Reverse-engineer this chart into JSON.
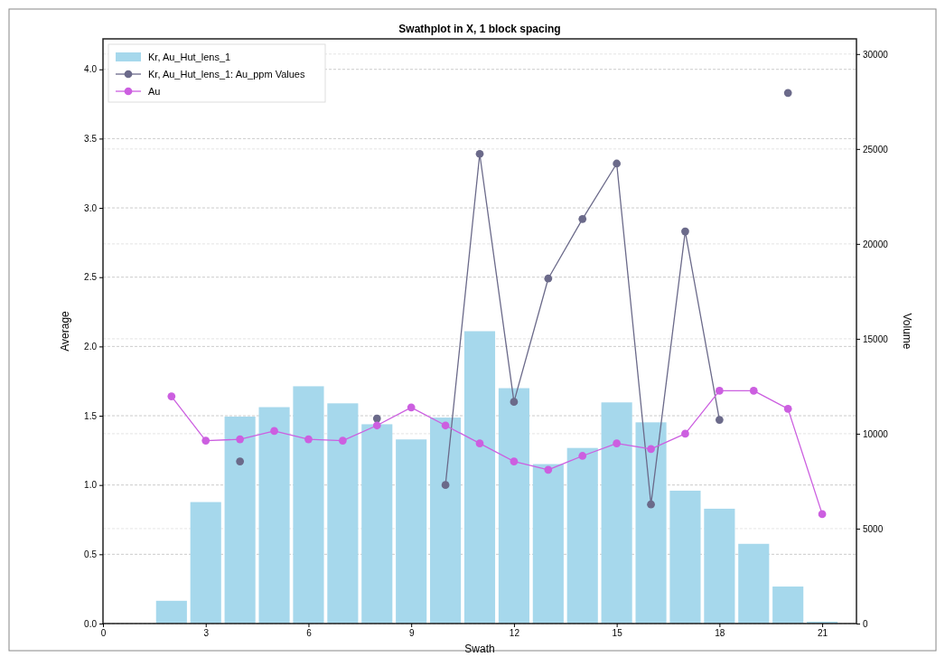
{
  "chart_data": {
    "type": "bar",
    "title": "Swathplot in X, 1 block spacing",
    "xlabel": "Swath",
    "ylabel": "Average",
    "y2label": "Volume",
    "x": [
      2,
      3,
      4,
      5,
      6,
      7,
      8,
      9,
      10,
      11,
      12,
      13,
      14,
      15,
      16,
      17,
      18,
      19,
      20,
      21
    ],
    "xlim": [
      0,
      22
    ],
    "xticks": [
      0,
      3,
      6,
      9,
      12,
      15,
      18,
      21
    ],
    "ylim": [
      0,
      4.22
    ],
    "yticks": [
      {
        "value": 0,
        "label": "0.0"
      },
      0.5,
      {
        "value": 1,
        "label": "1.0"
      },
      1.5,
      {
        "value": 2,
        "label": "2.0"
      },
      2.5,
      {
        "value": 3,
        "label": "3.0"
      },
      3.5,
      {
        "value": 4,
        "label": "4.0"
      }
    ],
    "y2lim": [
      0,
      30800
    ],
    "y2ticks": [
      0,
      5000,
      10000,
      15000,
      20000,
      25000,
      30000
    ],
    "grid": true,
    "legend": "top left",
    "marker": "circle",
    "series": [
      {
        "name": "Kr, Au_Hut_lens_1",
        "axis": "y2",
        "color": "#a6d8ec",
        "values": [
          1200,
          6400,
          10900,
          11400,
          12500,
          11600,
          10500,
          9700,
          10850,
          15400,
          12400,
          8400,
          9250,
          11650,
          10600,
          7000,
          6050,
          4200,
          1950,
          100
        ]
      },
      {
        "name": "Kr, Au_Hut_lens_1: Au_ppm Values",
        "type": "line",
        "color": "#6b6a8a",
        "values": [
          null,
          null,
          1.17,
          null,
          null,
          null,
          1.48,
          null,
          1.0,
          3.39,
          1.6,
          2.49,
          2.92,
          3.32,
          0.86,
          2.83,
          1.47,
          null,
          3.83,
          null
        ]
      },
      {
        "name": "Au",
        "type": "line",
        "color": "#cc5fe0",
        "values": [
          1.64,
          1.32,
          1.33,
          1.39,
          1.33,
          1.32,
          1.43,
          1.56,
          1.43,
          1.3,
          1.17,
          1.11,
          1.21,
          1.3,
          1.26,
          1.37,
          1.68,
          1.68,
          1.55,
          0.79
        ]
      }
    ]
  }
}
